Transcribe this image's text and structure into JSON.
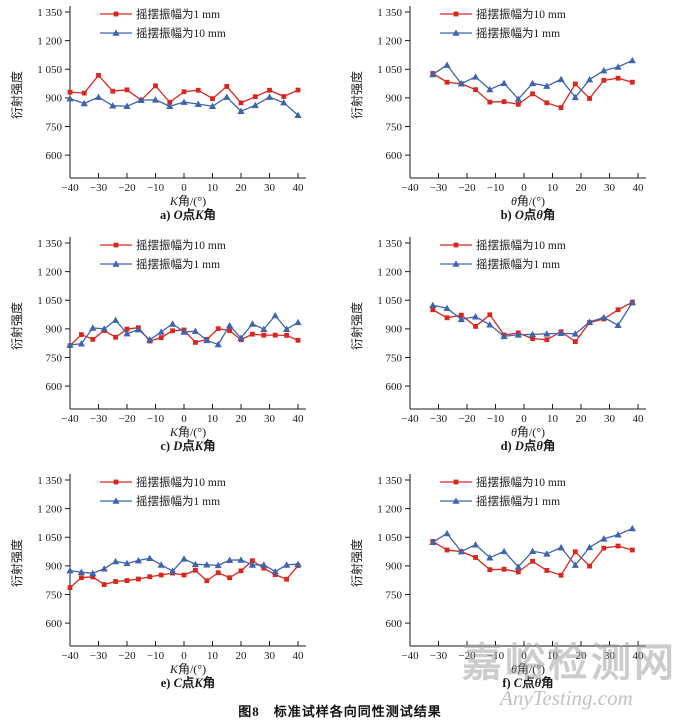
{
  "page": {
    "caption": "图8　标准试样各向同性测试结果",
    "watermark_cn": "嘉峪检测网",
    "watermark_en": "AnyTesting.com"
  },
  "style": {
    "red": "#d9261f",
    "blue": "#3f63ad",
    "axis_color": "#1a1a1a"
  },
  "chart_data": [
    {
      "type": "line",
      "subtitle": "a) O点K角",
      "subtitle_parts": [
        {
          "t": "a) ",
          "i": false
        },
        {
          "t": "O",
          "i": true
        },
        {
          "t": "点",
          "i": false
        },
        {
          "t": "K",
          "i": true
        },
        {
          "t": "角",
          "i": false
        }
      ],
      "xlabel": "K角/(°)",
      "xlabel_parts": [
        {
          "t": "K",
          "i": true
        },
        {
          "t": "角/(°)",
          "i": false
        }
      ],
      "ylabel": "衍射强度",
      "xlim": [
        -40,
        42.8
      ],
      "ylim": [
        480,
        1350
      ],
      "xticks": [
        -40,
        -30,
        -20,
        -10,
        0,
        10,
        20,
        30,
        40
      ],
      "xtick_labels": [
        "−40",
        "−30",
        "−20",
        "−10",
        "0",
        "10",
        "20",
        "30",
        "40"
      ],
      "yticks": [
        600,
        750,
        900,
        1050,
        1200,
        1350
      ],
      "ytick_labels": [
        "600",
        "750",
        "900",
        "1 050",
        "1 200",
        "1 350"
      ],
      "legend_position": "top-left-inside",
      "grid": false,
      "series": [
        {
          "name": "摇摆振幅为1 mm",
          "color": "#d9261f",
          "marker": "square",
          "x": [
            -40,
            -35,
            -30,
            -25,
            -20,
            -15,
            -10,
            -5,
            0,
            5,
            10,
            15,
            20,
            25,
            30,
            35,
            40
          ],
          "y": [
            930,
            925,
            1018,
            935,
            942,
            888,
            963,
            877,
            932,
            940,
            896,
            960,
            874,
            906,
            940,
            907,
            941
          ]
        },
        {
          "name": "摇摆振幅为10 mm",
          "color": "#3f63ad",
          "marker": "triangle",
          "x": [
            -40,
            -35,
            -30,
            -25,
            -20,
            -15,
            -10,
            -5,
            0,
            5,
            10,
            15,
            20,
            25,
            30,
            35,
            40
          ],
          "y": [
            896,
            871,
            904,
            859,
            856,
            888,
            890,
            856,
            878,
            867,
            856,
            904,
            830,
            861,
            904,
            875,
            809
          ]
        }
      ]
    },
    {
      "type": "line",
      "subtitle": "b) O点θ角",
      "subtitle_parts": [
        {
          "t": "b) ",
          "i": false
        },
        {
          "t": "O",
          "i": true
        },
        {
          "t": "点",
          "i": false
        },
        {
          "t": "θ",
          "i": true
        },
        {
          "t": "角",
          "i": false
        }
      ],
      "xlabel": "θ角/(°)",
      "xlabel_parts": [
        {
          "t": "θ",
          "i": true
        },
        {
          "t": "角/(°)",
          "i": false
        }
      ],
      "ylabel": "衍射强度",
      "xlim": [
        -40,
        42.8
      ],
      "ylim": [
        480,
        1350
      ],
      "xticks": [
        -40,
        -30,
        -20,
        -10,
        0,
        10,
        20,
        30,
        40
      ],
      "xtick_labels": [
        "−40",
        "−30",
        "−20",
        "−10",
        "0",
        "10",
        "20",
        "30",
        "40"
      ],
      "yticks": [
        600,
        750,
        900,
        1050,
        1200,
        1350
      ],
      "ytick_labels": [
        "600",
        "750",
        "900",
        "1 050",
        "1 200",
        "1 350"
      ],
      "legend_position": "top-left-inside",
      "grid": false,
      "series": [
        {
          "name": "摇摆振幅为10 mm",
          "color": "#d9261f",
          "marker": "square",
          "x": [
            -32,
            -27,
            -22,
            -17,
            -12,
            -7,
            -2,
            3,
            8,
            13,
            18,
            23,
            28,
            33,
            38
          ],
          "y": [
            1028,
            982,
            974,
            943,
            878,
            880,
            866,
            921,
            874,
            849,
            973,
            897,
            992,
            1003,
            982
          ]
        },
        {
          "name": "摇摆振幅为1 mm",
          "color": "#3f63ad",
          "marker": "triangle",
          "x": [
            -32,
            -27,
            -22,
            -17,
            -12,
            -7,
            -2,
            3,
            8,
            13,
            18,
            23,
            28,
            33,
            38
          ],
          "y": [
            1023,
            1072,
            974,
            1010,
            944,
            977,
            894,
            976,
            962,
            997,
            903,
            996,
            1043,
            1062,
            1096
          ]
        }
      ]
    },
    {
      "type": "line",
      "subtitle": "c) D点K角",
      "subtitle_parts": [
        {
          "t": "c) ",
          "i": false
        },
        {
          "t": "D",
          "i": true
        },
        {
          "t": "点",
          "i": false
        },
        {
          "t": "K",
          "i": true
        },
        {
          "t": "角",
          "i": false
        }
      ],
      "xlabel": "K角/(°)",
      "xlabel_parts": [
        {
          "t": "K",
          "i": true
        },
        {
          "t": "角/(°)",
          "i": false
        }
      ],
      "ylabel": "衍射强度",
      "xlim": [
        -40,
        42.8
      ],
      "ylim": [
        480,
        1350
      ],
      "xticks": [
        -40,
        -30,
        -20,
        -10,
        0,
        10,
        20,
        30,
        40
      ],
      "xtick_labels": [
        "−40",
        "−30",
        "−20",
        "−10",
        "0",
        "10",
        "20",
        "30",
        "40"
      ],
      "yticks": [
        600,
        750,
        900,
        1050,
        1200,
        1350
      ],
      "ytick_labels": [
        "600",
        "750",
        "900",
        "1 050",
        "1 200",
        "1 350"
      ],
      "legend_position": "top-left-inside",
      "grid": false,
      "series": [
        {
          "name": "摇摆振幅为10 mm",
          "color": "#d9261f",
          "marker": "square",
          "x": [
            -40,
            -36,
            -32,
            -28,
            -24,
            -20,
            -16,
            -12,
            -8,
            -4,
            0,
            4,
            8,
            12,
            16,
            20,
            24,
            28,
            32,
            36,
            40
          ],
          "y": [
            812,
            870,
            845,
            891,
            856,
            899,
            906,
            836,
            854,
            890,
            894,
            829,
            845,
            901,
            891,
            843,
            872,
            867,
            867,
            866,
            840
          ]
        },
        {
          "name": "摇摆振幅为1 mm",
          "color": "#3f63ad",
          "marker": "triangle",
          "x": [
            -40,
            -36,
            -32,
            -28,
            -24,
            -20,
            -16,
            -12,
            -8,
            -4,
            0,
            4,
            8,
            12,
            16,
            20,
            24,
            28,
            32,
            36,
            40
          ],
          "y": [
            816,
            822,
            905,
            900,
            946,
            875,
            896,
            843,
            884,
            926,
            884,
            888,
            840,
            818,
            918,
            852,
            926,
            898,
            970,
            898,
            934
          ]
        }
      ]
    },
    {
      "type": "line",
      "subtitle": "d) D点θ角",
      "subtitle_parts": [
        {
          "t": "d) ",
          "i": false
        },
        {
          "t": "D",
          "i": true
        },
        {
          "t": "点",
          "i": false
        },
        {
          "t": "θ",
          "i": true
        },
        {
          "t": "角",
          "i": false
        }
      ],
      "xlabel": "θ角/(°)",
      "xlabel_parts": [
        {
          "t": "θ",
          "i": true
        },
        {
          "t": "角/(°)",
          "i": false
        }
      ],
      "ylabel": "衍射强度",
      "xlim": [
        -40,
        42.8
      ],
      "ylim": [
        480,
        1350
      ],
      "xticks": [
        -40,
        -30,
        -20,
        -10,
        0,
        10,
        20,
        30,
        40
      ],
      "xtick_labels": [
        "−40",
        "−30",
        "−20",
        "−10",
        "0",
        "10",
        "20",
        "30",
        "40"
      ],
      "yticks": [
        600,
        750,
        900,
        1050,
        1200,
        1350
      ],
      "ytick_labels": [
        "600",
        "750",
        "900",
        "1 050",
        "1 200",
        "1 350"
      ],
      "legend_position": "top-left-inside",
      "grid": false,
      "series": [
        {
          "name": "摇摆振幅为10 mm",
          "color": "#d9261f",
          "marker": "square",
          "x": [
            -32,
            -27,
            -22,
            -17,
            -12,
            -7,
            -2,
            3,
            8,
            13,
            18,
            23,
            28,
            33,
            38
          ],
          "y": [
            1000,
            958,
            972,
            913,
            974,
            868,
            879,
            849,
            843,
            885,
            833,
            933,
            952,
            1000,
            1040
          ]
        },
        {
          "name": "摇摆振幅为1 mm",
          "color": "#3f63ad",
          "marker": "triangle",
          "x": [
            -32,
            -27,
            -22,
            -17,
            -12,
            -7,
            -2,
            3,
            8,
            13,
            18,
            23,
            28,
            33,
            38
          ],
          "y": [
            1024,
            1008,
            950,
            964,
            922,
            861,
            869,
            871,
            874,
            877,
            874,
            936,
            960,
            919,
            1038
          ]
        }
      ]
    },
    {
      "type": "line",
      "subtitle": "e) C点K角",
      "subtitle_parts": [
        {
          "t": "e) ",
          "i": false
        },
        {
          "t": "C",
          "i": true
        },
        {
          "t": "点",
          "i": false
        },
        {
          "t": "K",
          "i": true
        },
        {
          "t": "角",
          "i": false
        }
      ],
      "xlabel": "K角/(°)",
      "xlabel_parts": [
        {
          "t": "K",
          "i": true
        },
        {
          "t": "角/(°)",
          "i": false
        }
      ],
      "ylabel": "衍射强度",
      "xlim": [
        -40,
        42.8
      ],
      "ylim": [
        480,
        1350
      ],
      "xticks": [
        -40,
        -30,
        -20,
        -10,
        0,
        10,
        20,
        30,
        40
      ],
      "xtick_labels": [
        "−40",
        "−30",
        "−20",
        "−10",
        "0",
        "10",
        "20",
        "30",
        "40"
      ],
      "yticks": [
        600,
        750,
        900,
        1050,
        1200,
        1350
      ],
      "ytick_labels": [
        "600",
        "750",
        "900",
        "1 050",
        "1 200",
        "1 350"
      ],
      "legend_position": "top-left-inside",
      "grid": false,
      "series": [
        {
          "name": "摇摆振幅为10 mm",
          "color": "#d9261f",
          "marker": "square",
          "x": [
            -40,
            -36,
            -32,
            -28,
            -24,
            -20,
            -16,
            -12,
            -8,
            -4,
            0,
            4,
            8,
            12,
            16,
            20,
            24,
            28,
            32,
            36,
            40
          ],
          "y": [
            786,
            838,
            842,
            802,
            818,
            823,
            831,
            843,
            852,
            862,
            852,
            877,
            822,
            864,
            838,
            874,
            927,
            888,
            854,
            830,
            901
          ]
        },
        {
          "name": "摇摆振幅为1 mm",
          "color": "#3f63ad",
          "marker": "triangle",
          "x": [
            -40,
            -36,
            -32,
            -28,
            -24,
            -20,
            -16,
            -12,
            -8,
            -4,
            0,
            4,
            8,
            12,
            16,
            20,
            24,
            28,
            32,
            36,
            40
          ],
          "y": [
            875,
            867,
            861,
            885,
            923,
            913,
            928,
            940,
            905,
            873,
            937,
            908,
            906,
            903,
            930,
            931,
            905,
            905,
            870,
            905,
            909
          ]
        }
      ]
    },
    {
      "type": "line",
      "subtitle": "f) C点θ角",
      "subtitle_parts": [
        {
          "t": "f) ",
          "i": false
        },
        {
          "t": "C",
          "i": true
        },
        {
          "t": "点",
          "i": false
        },
        {
          "t": "θ",
          "i": true
        },
        {
          "t": "角",
          "i": false
        }
      ],
      "xlabel": "θ角/(°)",
      "xlabel_parts": [
        {
          "t": "θ",
          "i": true
        },
        {
          "t": "角/(°)",
          "i": false
        }
      ],
      "ylabel": "衍射强度",
      "xlim": [
        -40,
        42.8
      ],
      "ylim": [
        480,
        1350
      ],
      "xticks": [
        -40,
        -30,
        -20,
        -10,
        0,
        10,
        20,
        30,
        40
      ],
      "xtick_labels": [
        "−40",
        "−30",
        "−20",
        "−10",
        "0",
        "10",
        "20",
        "30",
        "40"
      ],
      "yticks": [
        600,
        750,
        900,
        1050,
        1200,
        1350
      ],
      "ytick_labels": [
        "600",
        "750",
        "900",
        "1 050",
        "1 200",
        "1 350"
      ],
      "legend_position": "top-left-inside",
      "grid": false,
      "series": [
        {
          "name": "摇摆振幅为10 mm",
          "color": "#d9261f",
          "marker": "square",
          "x": [
            -32,
            -27,
            -22,
            -17,
            -12,
            -7,
            -2,
            3,
            8,
            13,
            18,
            23,
            28,
            33,
            38
          ],
          "y": [
            1028,
            983,
            975,
            944,
            880,
            882,
            868,
            924,
            876,
            851,
            974,
            899,
            993,
            1004,
            983
          ]
        },
        {
          "name": "摇摆振幅为1 mm",
          "color": "#3f63ad",
          "marker": "triangle",
          "x": [
            -32,
            -27,
            -22,
            -17,
            -12,
            -7,
            -2,
            3,
            8,
            13,
            18,
            23,
            28,
            33,
            38
          ],
          "y": [
            1024,
            1070,
            975,
            1011,
            943,
            976,
            895,
            977,
            963,
            996,
            904,
            997,
            1042,
            1063,
            1096
          ]
        }
      ]
    }
  ]
}
